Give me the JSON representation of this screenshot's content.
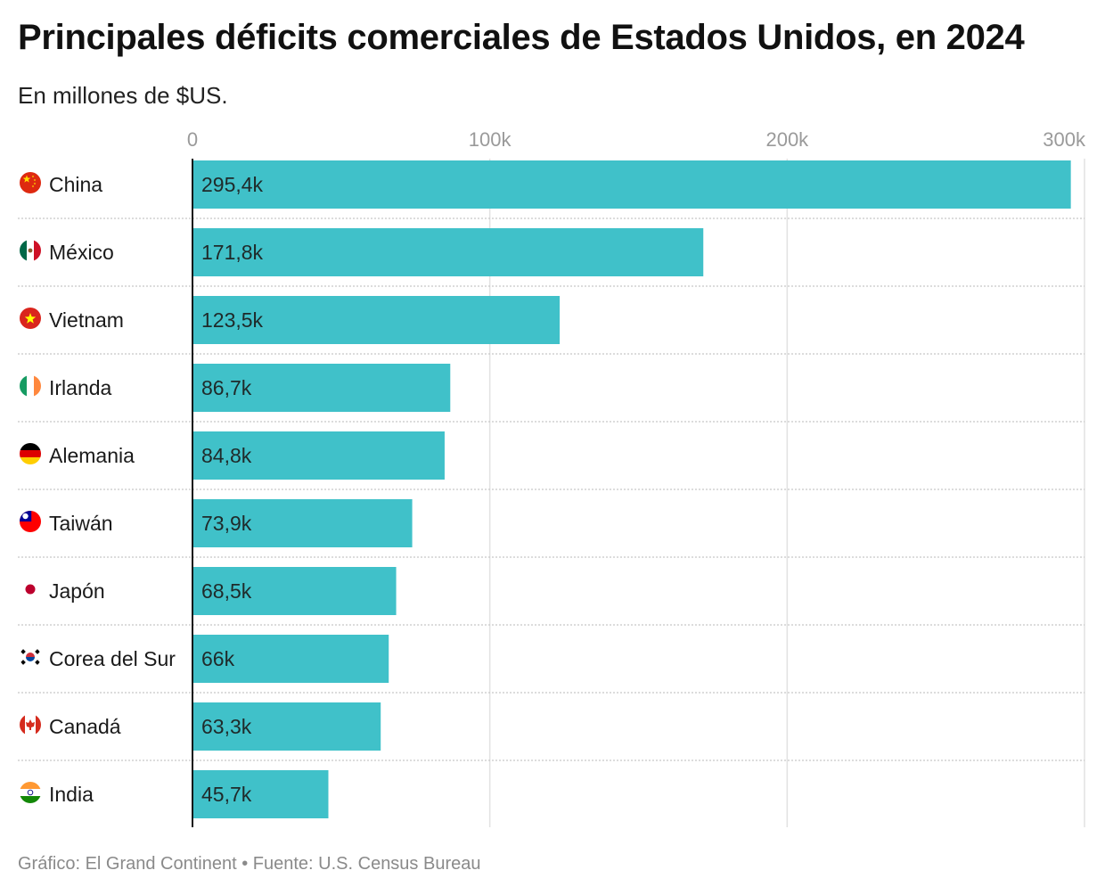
{
  "chart_data": {
    "type": "bar",
    "orientation": "horizontal",
    "title": "Principales déficits comerciales de Estados Unidos, en 2024",
    "subtitle": "En millones de $US.",
    "source": "Gráfico: El Grand Continent • Fuente: U.S. Census Bureau",
    "categories": [
      "China",
      "México",
      "Vietnam",
      "Irlanda",
      "Alemania",
      "Taiwán",
      "Japón",
      "Corea del Sur",
      "Canadá",
      "India"
    ],
    "flags": [
      "flag-china-icon",
      "flag-mexico-icon",
      "flag-vietnam-icon",
      "flag-ireland-icon",
      "flag-germany-icon",
      "flag-taiwan-icon",
      "flag-japan-icon",
      "flag-south-korea-icon",
      "flag-canada-icon",
      "flag-india-icon"
    ],
    "values": [
      295.4,
      171.8,
      123.5,
      86.7,
      84.8,
      73.9,
      68.5,
      66,
      63.3,
      45.7
    ],
    "value_labels": [
      "295,4k",
      "171,8k",
      "123,5k",
      "86,7k",
      "84,8k",
      "73,9k",
      "68,5k",
      "66k",
      "63,3k",
      "45,7k"
    ],
    "xlim": [
      0,
      300
    ],
    "ticks": [
      0,
      100,
      200,
      300
    ],
    "tick_labels": [
      "0",
      "100k",
      "200k",
      "300k"
    ],
    "grid": true,
    "bar_color": "#40c1c9"
  }
}
